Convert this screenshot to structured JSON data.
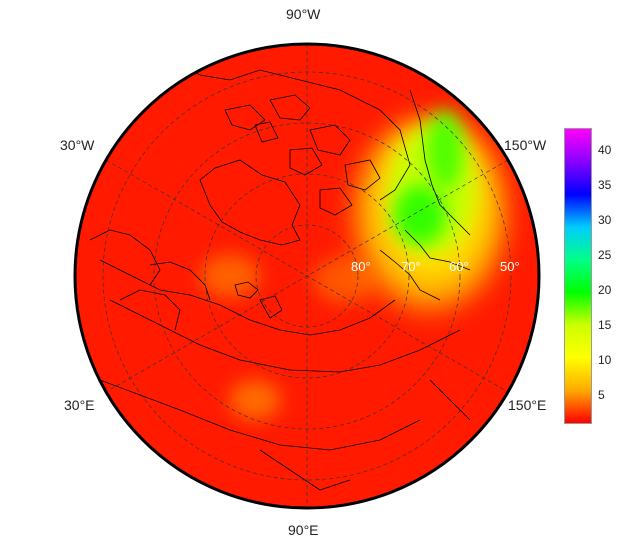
{
  "map": {
    "center": "North Pole",
    "projection": "polar azimuthal",
    "graticule": "dashed",
    "background_color": "#ff1a00",
    "longitude_labels": {
      "top": "90°W",
      "upper_left": "30°W",
      "upper_right": "150°W",
      "lower_left": "30°E",
      "lower_right": "150°E",
      "bottom": "90°E"
    },
    "latitude_labels": [
      "80°",
      "70°",
      "60°",
      "50°"
    ]
  },
  "colorbar": {
    "min": 1,
    "max": 43,
    "ticks": [
      "40",
      "35",
      "30",
      "25",
      "20",
      "15",
      "10",
      "5"
    ],
    "colors": [
      "#ff00ff",
      "#8800ff",
      "#0000ff",
      "#00ccff",
      "#00ff88",
      "#00ff00",
      "#ccff00",
      "#ffff00",
      "#ffaa00",
      "#ff0000"
    ]
  }
}
